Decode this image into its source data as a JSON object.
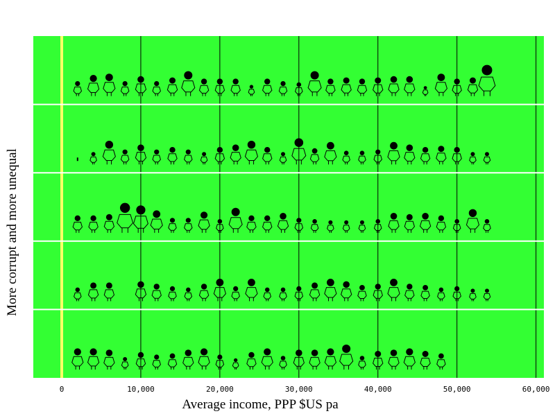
{
  "chart_data": {
    "type": "scatter",
    "title": "",
    "xlabel": "Average income, PPP $US pa",
    "ylabel": "More corrupt and more unequal",
    "xlim": [
      -3600,
      61000
    ],
    "xticks": [
      0,
      10000,
      20000,
      30000,
      40000,
      50000,
      60000
    ],
    "xtick_labels": [
      "0",
      "10,000",
      "20,000",
      "30,000",
      "40,000",
      "50,000",
      "60,000"
    ],
    "grid": "vertical",
    "colors": {
      "background": "#33ff33",
      "zero_line": "#ffff66",
      "figure": "#000000",
      "band_separator": "#ffffff"
    },
    "bands": [
      {
        "points": [
          {
            "x": 2000,
            "s": 0.6
          },
          {
            "x": 4000,
            "s": 0.85
          },
          {
            "x": 6000,
            "s": 0.9
          },
          {
            "x": 8000,
            "s": 0.6
          },
          {
            "x": 10000,
            "s": 0.8
          },
          {
            "x": 12000,
            "s": 0.6
          },
          {
            "x": 14000,
            "s": 0.75
          },
          {
            "x": 16000,
            "s": 1.0
          },
          {
            "x": 18000,
            "s": 0.7
          },
          {
            "x": 20000,
            "s": 0.7
          },
          {
            "x": 22000,
            "s": 0.7
          },
          {
            "x": 24000,
            "s": 0.45
          },
          {
            "x": 26000,
            "s": 0.7
          },
          {
            "x": 28000,
            "s": 0.6
          },
          {
            "x": 30000,
            "s": 0.55
          },
          {
            "x": 32000,
            "s": 1.0
          },
          {
            "x": 34000,
            "s": 0.7
          },
          {
            "x": 36000,
            "s": 0.75
          },
          {
            "x": 38000,
            "s": 0.7
          },
          {
            "x": 40000,
            "s": 0.75
          },
          {
            "x": 42000,
            "s": 0.8
          },
          {
            "x": 44000,
            "s": 0.8
          },
          {
            "x": 46000,
            "s": 0.4
          },
          {
            "x": 48000,
            "s": 0.9
          },
          {
            "x": 50000,
            "s": 0.7
          },
          {
            "x": 52000,
            "s": 0.75
          },
          {
            "x": 53800,
            "s": 1.25
          }
        ]
      },
      {
        "points": [
          {
            "x": 2000,
            "s": 0.1
          },
          {
            "x": 4000,
            "s": 0.5
          },
          {
            "x": 6000,
            "s": 0.95
          },
          {
            "x": 8000,
            "s": 0.6
          },
          {
            "x": 10000,
            "s": 0.8
          },
          {
            "x": 12000,
            "s": 0.6
          },
          {
            "x": 14000,
            "s": 0.7
          },
          {
            "x": 16000,
            "s": 0.6
          },
          {
            "x": 18000,
            "s": 0.5
          },
          {
            "x": 20000,
            "s": 0.7
          },
          {
            "x": 22000,
            "s": 0.8
          },
          {
            "x": 24000,
            "s": 0.95
          },
          {
            "x": 26000,
            "s": 0.7
          },
          {
            "x": 28000,
            "s": 0.5
          },
          {
            "x": 30000,
            "s": 1.05
          },
          {
            "x": 32000,
            "s": 0.65
          },
          {
            "x": 34000,
            "s": 0.9
          },
          {
            "x": 36000,
            "s": 0.55
          },
          {
            "x": 38000,
            "s": 0.55
          },
          {
            "x": 40000,
            "s": 0.6
          },
          {
            "x": 42000,
            "s": 0.9
          },
          {
            "x": 44000,
            "s": 0.8
          },
          {
            "x": 46000,
            "s": 0.7
          },
          {
            "x": 48000,
            "s": 0.75
          },
          {
            "x": 50000,
            "s": 0.7
          },
          {
            "x": 52000,
            "s": 0.5
          },
          {
            "x": 53800,
            "s": 0.5
          }
        ]
      },
      {
        "points": [
          {
            "x": 2000,
            "s": 0.7
          },
          {
            "x": 4000,
            "s": 0.7
          },
          {
            "x": 6000,
            "s": 0.75
          },
          {
            "x": 8000,
            "s": 1.2
          },
          {
            "x": 10000,
            "s": 1.1
          },
          {
            "x": 12000,
            "s": 0.9
          },
          {
            "x": 14000,
            "s": 0.6
          },
          {
            "x": 16000,
            "s": 0.6
          },
          {
            "x": 18000,
            "s": 0.85
          },
          {
            "x": 20000,
            "s": 0.55
          },
          {
            "x": 22000,
            "s": 1.0
          },
          {
            "x": 24000,
            "s": 0.7
          },
          {
            "x": 26000,
            "s": 0.7
          },
          {
            "x": 28000,
            "s": 0.8
          },
          {
            "x": 30000,
            "s": 0.6
          },
          {
            "x": 32000,
            "s": 0.55
          },
          {
            "x": 34000,
            "s": 0.5
          },
          {
            "x": 36000,
            "s": 0.5
          },
          {
            "x": 38000,
            "s": 0.5
          },
          {
            "x": 40000,
            "s": 0.55
          },
          {
            "x": 42000,
            "s": 0.8
          },
          {
            "x": 44000,
            "s": 0.75
          },
          {
            "x": 46000,
            "s": 0.8
          },
          {
            "x": 48000,
            "s": 0.7
          },
          {
            "x": 50000,
            "s": 0.55
          },
          {
            "x": 52000,
            "s": 0.95
          },
          {
            "x": 53800,
            "s": 0.55
          }
        ]
      },
      {
        "points": [
          {
            "x": 2000,
            "s": 0.55
          },
          {
            "x": 4000,
            "s": 0.75
          },
          {
            "x": 6000,
            "s": 0.75
          },
          {
            "x": 10000,
            "s": 0.8
          },
          {
            "x": 12000,
            "s": 0.7
          },
          {
            "x": 14000,
            "s": 0.6
          },
          {
            "x": 16000,
            "s": 0.55
          },
          {
            "x": 18000,
            "s": 0.7
          },
          {
            "x": 20000,
            "s": 0.9
          },
          {
            "x": 22000,
            "s": 0.6
          },
          {
            "x": 24000,
            "s": 0.9
          },
          {
            "x": 26000,
            "s": 0.55
          },
          {
            "x": 28000,
            "s": 0.55
          },
          {
            "x": 30000,
            "s": 0.6
          },
          {
            "x": 32000,
            "s": 0.75
          },
          {
            "x": 34000,
            "s": 0.9
          },
          {
            "x": 36000,
            "s": 0.8
          },
          {
            "x": 38000,
            "s": 0.65
          },
          {
            "x": 40000,
            "s": 0.7
          },
          {
            "x": 42000,
            "s": 0.9
          },
          {
            "x": 44000,
            "s": 0.7
          },
          {
            "x": 46000,
            "s": 0.65
          },
          {
            "x": 48000,
            "s": 0.55
          },
          {
            "x": 50000,
            "s": 0.6
          },
          {
            "x": 52000,
            "s": 0.5
          },
          {
            "x": 53800,
            "s": 0.5
          }
        ]
      },
      {
        "points": [
          {
            "x": 2000,
            "s": 0.85
          },
          {
            "x": 4000,
            "s": 0.85
          },
          {
            "x": 6000,
            "s": 0.8
          },
          {
            "x": 8000,
            "s": 0.5
          },
          {
            "x": 10000,
            "s": 0.7
          },
          {
            "x": 12000,
            "s": 0.6
          },
          {
            "x": 14000,
            "s": 0.65
          },
          {
            "x": 16000,
            "s": 0.8
          },
          {
            "x": 18000,
            "s": 0.85
          },
          {
            "x": 20000,
            "s": 0.6
          },
          {
            "x": 22000,
            "s": 0.45
          },
          {
            "x": 24000,
            "s": 0.7
          },
          {
            "x": 26000,
            "s": 0.85
          },
          {
            "x": 28000,
            "s": 0.55
          },
          {
            "x": 30000,
            "s": 0.8
          },
          {
            "x": 32000,
            "s": 0.8
          },
          {
            "x": 34000,
            "s": 0.85
          },
          {
            "x": 36000,
            "s": 1.0
          },
          {
            "x": 38000,
            "s": 0.55
          },
          {
            "x": 40000,
            "s": 0.75
          },
          {
            "x": 42000,
            "s": 0.8
          },
          {
            "x": 44000,
            "s": 0.85
          },
          {
            "x": 46000,
            "s": 0.75
          },
          {
            "x": 48000,
            "s": 0.65
          }
        ]
      }
    ]
  }
}
